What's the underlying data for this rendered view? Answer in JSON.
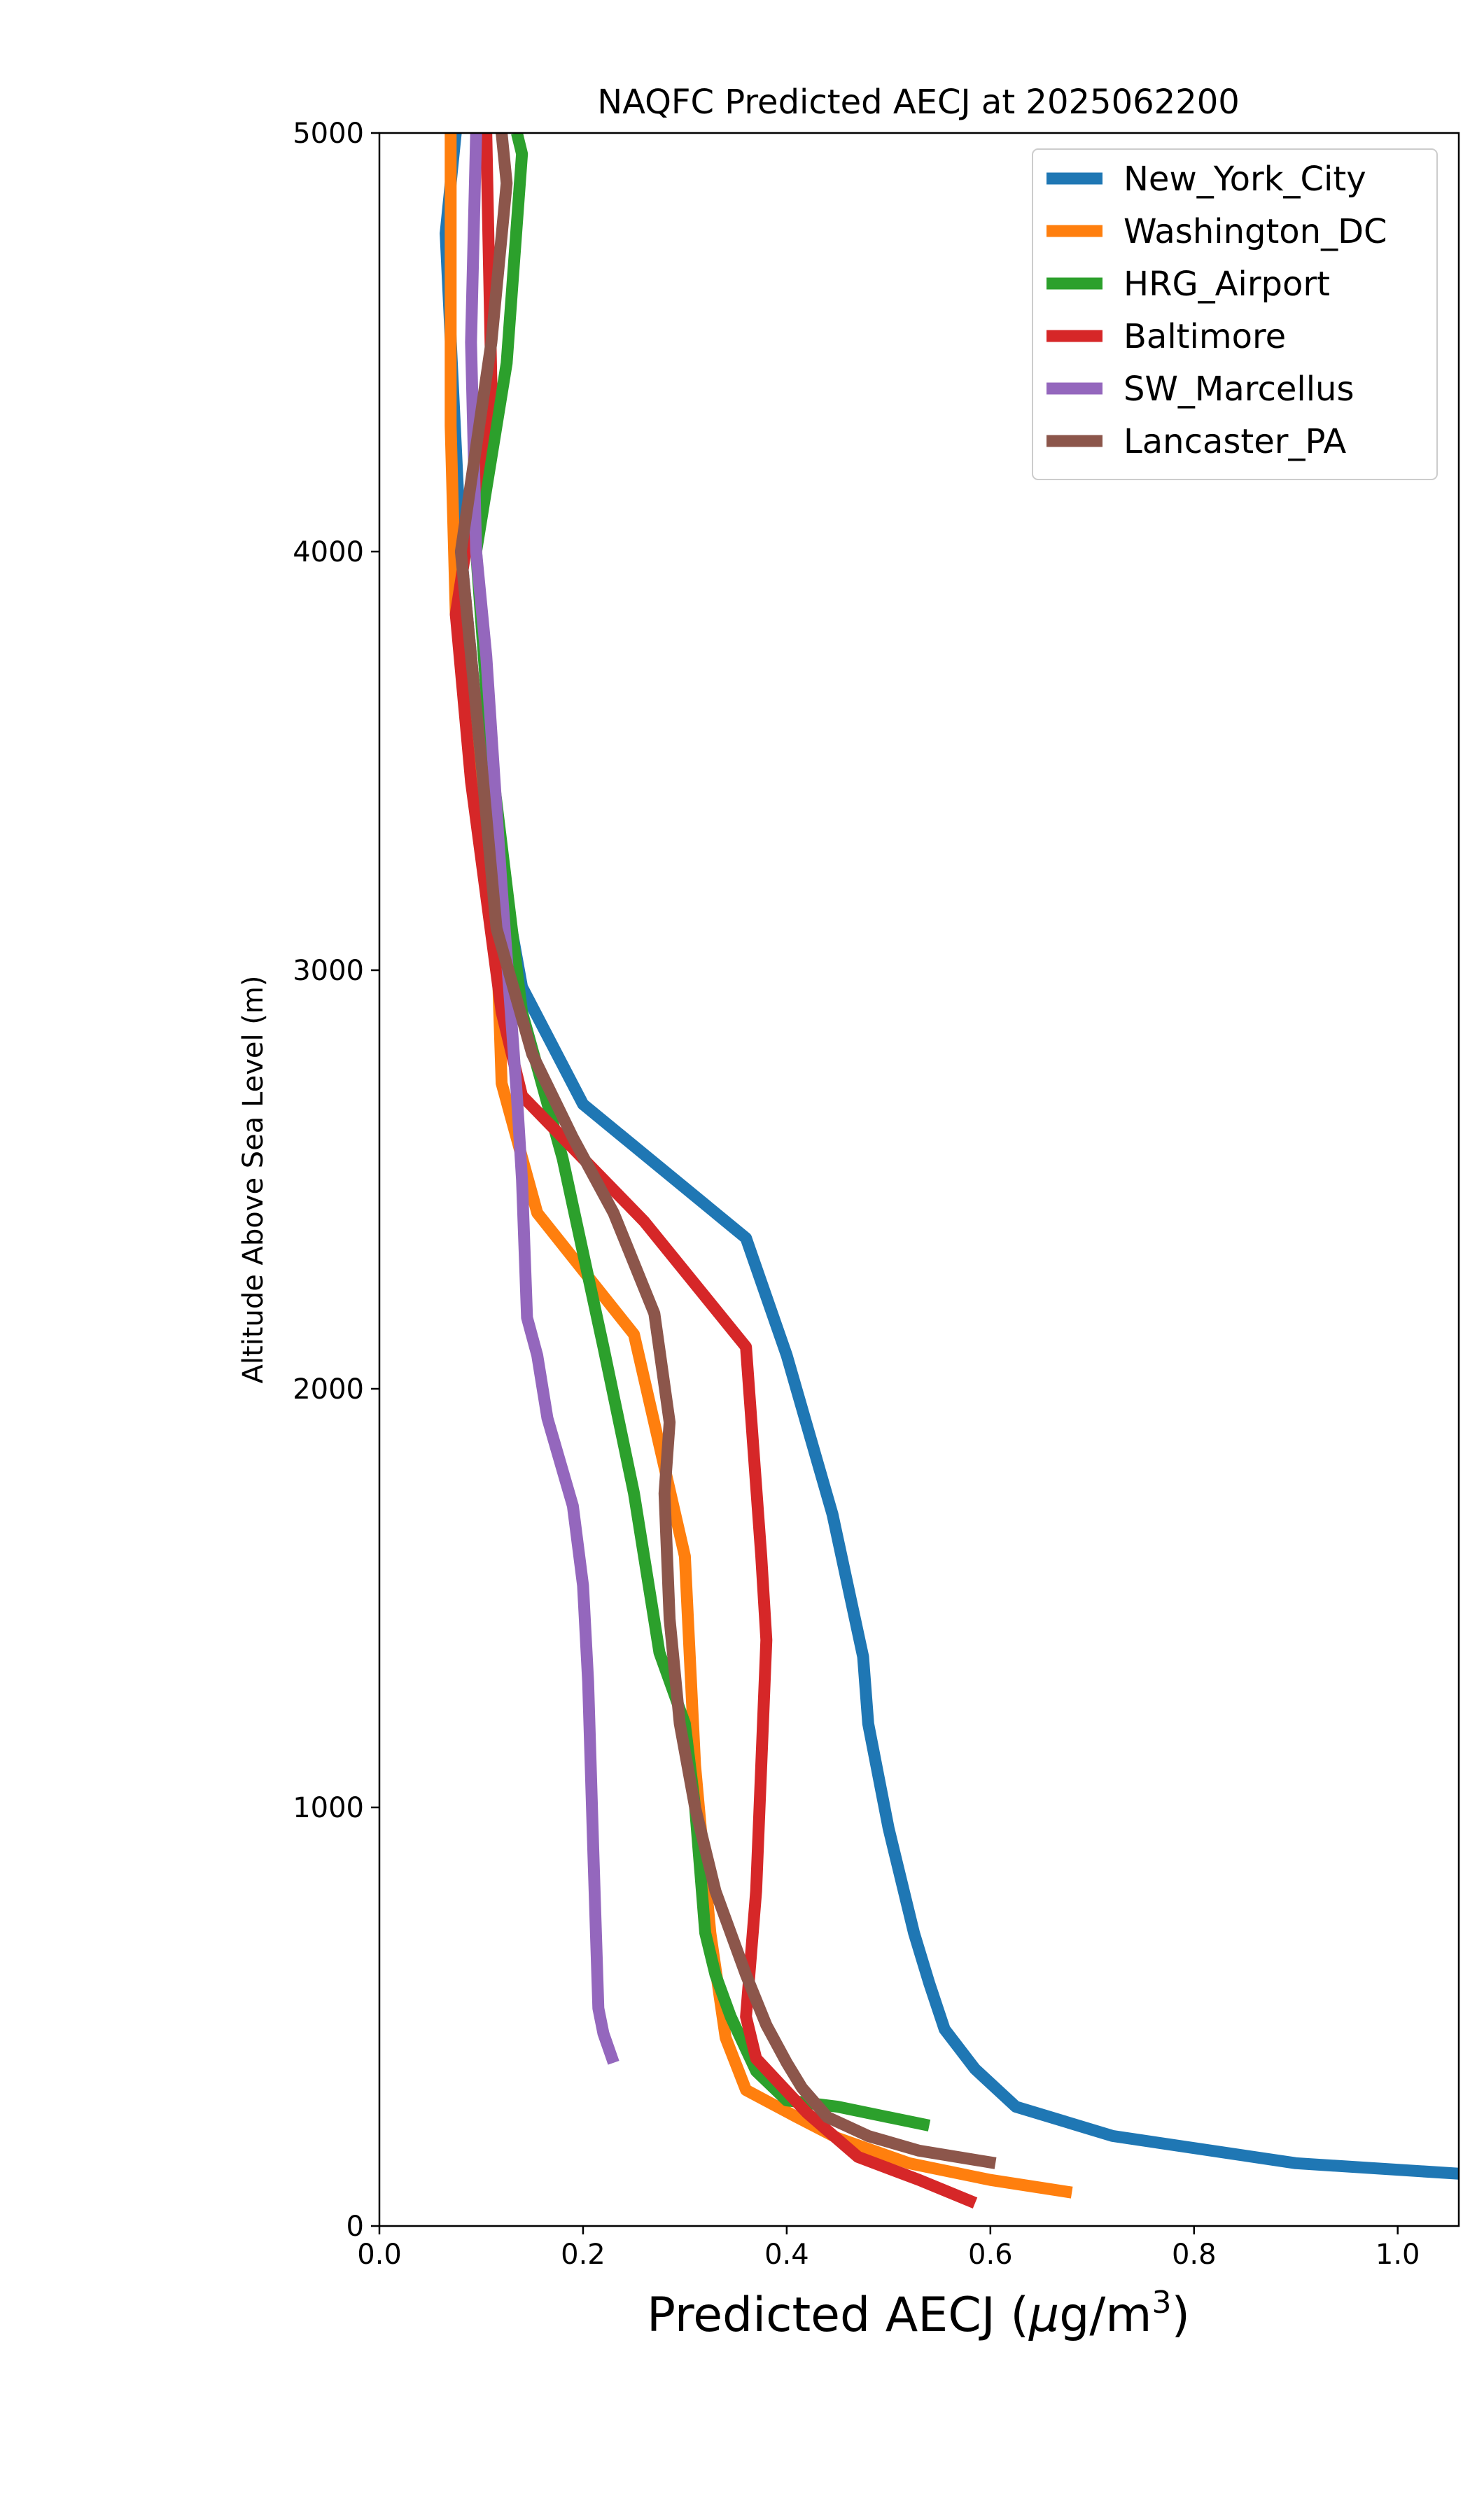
{
  "chart_data": {
    "type": "line",
    "title": "NAQFC Predicted AECJ at 2025062200",
    "xlabel": "Predicted AECJ (μg/m³)",
    "xlabel_parts": {
      "main": "Predicted AECJ (",
      "mu": "μ",
      "unit": "g/m",
      "exp": "3",
      "close": ")"
    },
    "ylabel": "Altitude Above Sea Level (m)",
    "xlim": [
      0.0,
      1.06
    ],
    "ylim": [
      0,
      5000
    ],
    "xticks": [
      "0.0",
      "0.2",
      "0.4",
      "0.6",
      "0.8",
      "1.0"
    ],
    "yticks": [
      "0",
      "1000",
      "2000",
      "3000",
      "4000",
      "5000"
    ],
    "xtick_values": [
      0.0,
      0.2,
      0.4,
      0.6,
      0.8,
      1.0
    ],
    "ytick_values": [
      0,
      1000,
      2000,
      3000,
      4000,
      5000
    ],
    "grid": false,
    "legend_position": "top-right",
    "series": [
      {
        "name": "New_York_City",
        "color": "#1f77b4",
        "points": [
          [
            1.06,
            125
          ],
          [
            0.9,
            150
          ],
          [
            0.72,
            215
          ],
          [
            0.625,
            285
          ],
          [
            0.585,
            375
          ],
          [
            0.555,
            470
          ],
          [
            0.54,
            580
          ],
          [
            0.525,
            700
          ],
          [
            0.5,
            950
          ],
          [
            0.48,
            1200
          ],
          [
            0.475,
            1360
          ],
          [
            0.445,
            1700
          ],
          [
            0.4,
            2080
          ],
          [
            0.36,
            2360
          ],
          [
            0.2,
            2680
          ],
          [
            0.14,
            2960
          ],
          [
            0.1,
            3500
          ],
          [
            0.08,
            4000
          ],
          [
            0.065,
            4760
          ],
          [
            0.075,
            5000
          ]
        ]
      },
      {
        "name": "Washington_DC",
        "color": "#ff7f0e",
        "points": [
          [
            0.68,
            80
          ],
          [
            0.6,
            110
          ],
          [
            0.52,
            150
          ],
          [
            0.45,
            210
          ],
          [
            0.41,
            260
          ],
          [
            0.36,
            325
          ],
          [
            0.34,
            450
          ],
          [
            0.325,
            700
          ],
          [
            0.31,
            1100
          ],
          [
            0.3,
            1600
          ],
          [
            0.25,
            2130
          ],
          [
            0.155,
            2420
          ],
          [
            0.12,
            2730
          ],
          [
            0.115,
            3100
          ],
          [
            0.09,
            3600
          ],
          [
            0.075,
            3850
          ],
          [
            0.07,
            4300
          ],
          [
            0.07,
            5000
          ]
        ]
      },
      {
        "name": "HRG_Airport",
        "color": "#2ca02c",
        "points": [
          [
            0.54,
            240
          ],
          [
            0.45,
            285
          ],
          [
            0.4,
            300
          ],
          [
            0.37,
            370
          ],
          [
            0.345,
            500
          ],
          [
            0.33,
            600
          ],
          [
            0.32,
            700
          ],
          [
            0.31,
            1000
          ],
          [
            0.3,
            1200
          ],
          [
            0.275,
            1370
          ],
          [
            0.25,
            1750
          ],
          [
            0.22,
            2100
          ],
          [
            0.18,
            2550
          ],
          [
            0.14,
            2900
          ],
          [
            0.11,
            3500
          ],
          [
            0.095,
            4000
          ],
          [
            0.125,
            4450
          ],
          [
            0.14,
            4950
          ],
          [
            0.135,
            5000
          ]
        ]
      },
      {
        "name": "Baltimore",
        "color": "#d62728",
        "points": [
          [
            0.585,
            55
          ],
          [
            0.53,
            110
          ],
          [
            0.47,
            165
          ],
          [
            0.42,
            270
          ],
          [
            0.37,
            400
          ],
          [
            0.36,
            500
          ],
          [
            0.37,
            800
          ],
          [
            0.375,
            1100
          ],
          [
            0.38,
            1400
          ],
          [
            0.375,
            1600
          ],
          [
            0.36,
            2100
          ],
          [
            0.26,
            2400
          ],
          [
            0.14,
            2700
          ],
          [
            0.12,
            2900
          ],
          [
            0.09,
            3450
          ],
          [
            0.075,
            3850
          ],
          [
            0.11,
            4400
          ],
          [
            0.105,
            5000
          ]
        ]
      },
      {
        "name": "SW_Marcellus",
        "color": "#9467bd",
        "points": [
          [
            0.23,
            390
          ],
          [
            0.22,
            460
          ],
          [
            0.215,
            520
          ],
          [
            0.21,
            900
          ],
          [
            0.205,
            1300
          ],
          [
            0.2,
            1530
          ],
          [
            0.19,
            1720
          ],
          [
            0.165,
            1930
          ],
          [
            0.155,
            2080
          ],
          [
            0.145,
            2170
          ],
          [
            0.14,
            2500
          ],
          [
            0.135,
            2700
          ],
          [
            0.12,
            3200
          ],
          [
            0.105,
            3750
          ],
          [
            0.095,
            4000
          ],
          [
            0.09,
            4500
          ],
          [
            0.095,
            5000
          ]
        ]
      },
      {
        "name": "Lancaster_PA",
        "color": "#8c564b",
        "points": [
          [
            0.605,
            150
          ],
          [
            0.53,
            180
          ],
          [
            0.48,
            215
          ],
          [
            0.44,
            260
          ],
          [
            0.415,
            330
          ],
          [
            0.4,
            390
          ],
          [
            0.38,
            480
          ],
          [
            0.36,
            600
          ],
          [
            0.33,
            800
          ],
          [
            0.31,
            1000
          ],
          [
            0.295,
            1200
          ],
          [
            0.285,
            1450
          ],
          [
            0.28,
            1750
          ],
          [
            0.285,
            1920
          ],
          [
            0.27,
            2180
          ],
          [
            0.23,
            2420
          ],
          [
            0.19,
            2600
          ],
          [
            0.15,
            2800
          ],
          [
            0.115,
            3100
          ],
          [
            0.1,
            3500
          ],
          [
            0.08,
            4000
          ],
          [
            0.11,
            4500
          ],
          [
            0.125,
            4880
          ],
          [
            0.12,
            5000
          ]
        ]
      }
    ]
  }
}
